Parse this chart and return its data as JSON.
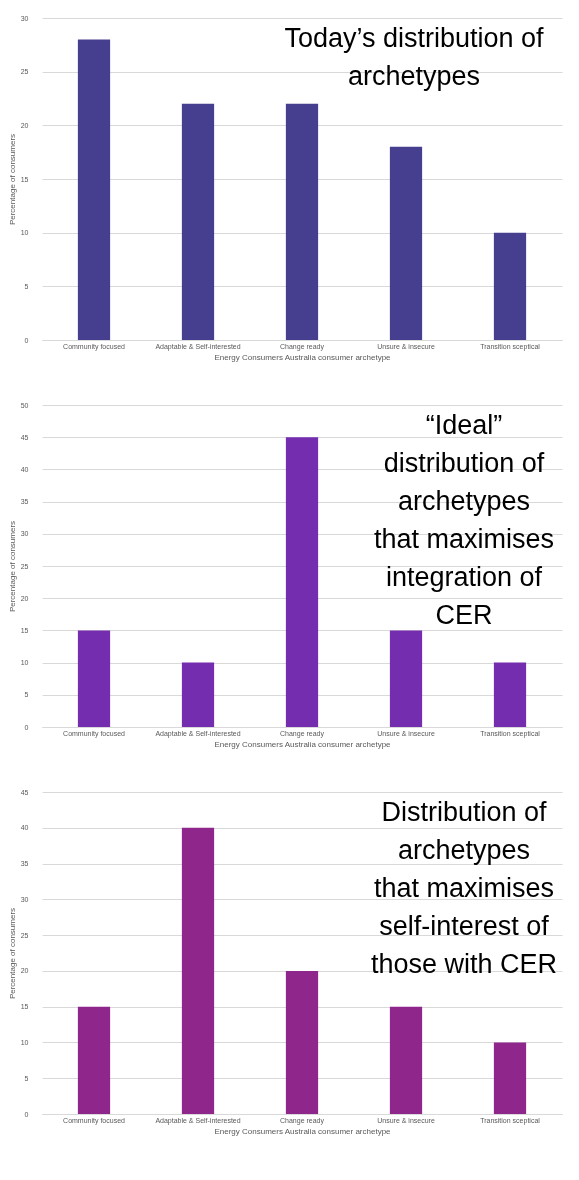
{
  "chart_data": [
    {
      "type": "bar",
      "title": "Today’s distribution of\narchetypes",
      "xlabel": "Energy Consumers Australia consumer archetype",
      "ylabel": "Percentage of consumers",
      "categories": [
        "Community focused",
        "Adaptable & Self-interested",
        "Change ready",
        "Unsure & insecure",
        "Transition sceptical"
      ],
      "values": [
        28,
        22,
        22,
        18,
        10
      ],
      "color": "#463e8e",
      "ylim": [
        0,
        30
      ],
      "yticks": [
        0,
        5,
        10,
        15,
        20,
        25,
        30
      ],
      "grid": "y"
    },
    {
      "type": "bar",
      "title": "“Ideal”\ndistribution of\narchetypes\nthat maximises\nintegration of\nCER",
      "xlabel": "Energy Consumers Australia consumer archetype",
      "ylabel": "Percentage of consumers",
      "categories": [
        "Community focused",
        "Adaptable & Self-interested",
        "Change ready",
        "Unsure & insecure",
        "Transition sceptical"
      ],
      "values": [
        15,
        10,
        45,
        15,
        10
      ],
      "color": "#742daf",
      "ylim": [
        0,
        50
      ],
      "yticks": [
        0,
        5,
        10,
        15,
        20,
        25,
        30,
        35,
        40,
        45,
        50
      ],
      "grid": "y"
    },
    {
      "type": "bar",
      "title": "Distribution of\narchetypes\nthat maximises\nself-interest of\nthose with CER",
      "xlabel": "Energy Consumers Australia consumer archetype",
      "ylabel": "Percentage of consumers",
      "categories": [
        "Community focused",
        "Adaptable & Self-interested",
        "Change ready",
        "Unsure & insecure",
        "Transition sceptical"
      ],
      "values": [
        15,
        40,
        20,
        15,
        10
      ],
      "color": "#8e268b",
      "ylim": [
        0,
        45
      ],
      "yticks": [
        0,
        5,
        10,
        15,
        20,
        25,
        30,
        35,
        40,
        45
      ],
      "grid": "y"
    }
  ]
}
